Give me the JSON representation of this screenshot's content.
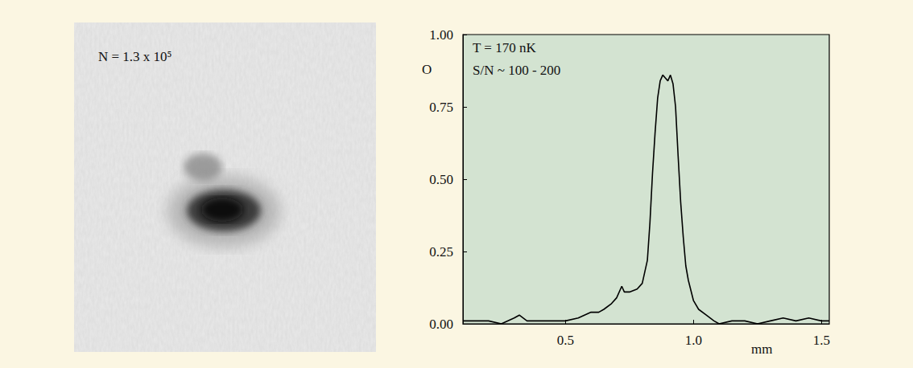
{
  "image": {
    "label": "N = 1.3 x 10⁵"
  },
  "chart_data": {
    "type": "line",
    "ylabel": "O",
    "xlabel": "mm",
    "annotations": [
      "T = 170 nK",
      "S/N ~ 100 - 200"
    ],
    "color": "#000000",
    "x": [
      0.1,
      0.15,
      0.2,
      0.25,
      0.3,
      0.32,
      0.35,
      0.4,
      0.45,
      0.5,
      0.55,
      0.6,
      0.63,
      0.65,
      0.68,
      0.7,
      0.72,
      0.73,
      0.75,
      0.78,
      0.8,
      0.82,
      0.83,
      0.84,
      0.85,
      0.86,
      0.87,
      0.88,
      0.89,
      0.9,
      0.91,
      0.92,
      0.93,
      0.94,
      0.95,
      0.96,
      0.97,
      0.98,
      1.0,
      1.02,
      1.05,
      1.08,
      1.1,
      1.15,
      1.2,
      1.25,
      1.3,
      1.35,
      1.4,
      1.45,
      1.5,
      1.53
    ],
    "values": [
      0.01,
      0.01,
      0.01,
      0.0,
      0.02,
      0.03,
      0.01,
      0.01,
      0.01,
      0.01,
      0.02,
      0.04,
      0.04,
      0.05,
      0.07,
      0.09,
      0.13,
      0.11,
      0.11,
      0.12,
      0.14,
      0.22,
      0.35,
      0.52,
      0.66,
      0.78,
      0.84,
      0.86,
      0.85,
      0.84,
      0.86,
      0.83,
      0.75,
      0.58,
      0.42,
      0.3,
      0.2,
      0.15,
      0.08,
      0.05,
      0.03,
      0.01,
      0.0,
      0.01,
      0.01,
      0.0,
      0.01,
      0.02,
      0.01,
      0.02,
      0.01,
      0.01
    ],
    "xlim": [
      0.1,
      1.53
    ],
    "xticks": [
      {
        "value": 0.5,
        "label": "0.5"
      },
      {
        "value": 1.0,
        "label": "1.0"
      },
      {
        "value": 1.5,
        "label": "1.5"
      }
    ],
    "ylim": [
      0,
      1
    ],
    "yticks": [
      {
        "value": 0,
        "label": "0.00"
      },
      {
        "value": 0.25,
        "label": "0.25"
      },
      {
        "value": 0.5,
        "label": "0.50"
      },
      {
        "value": 0.75,
        "label": "0.75"
      },
      {
        "value": 1,
        "label": "1.00"
      }
    ],
    "grid": false
  }
}
